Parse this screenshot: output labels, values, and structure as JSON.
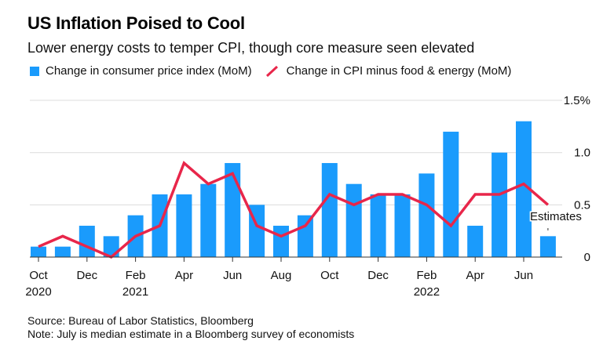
{
  "header": {
    "title": "US Inflation Poised to Cool",
    "subtitle": "Lower energy costs to temper CPI, though core measure seen elevated"
  },
  "legend": [
    {
      "label": "Change in consumer price index (MoM)",
      "color": "#1a9bfc",
      "kind": "bar"
    },
    {
      "label": "Change in CPI minus food & energy (MoM)",
      "color": "#e8264a",
      "kind": "line"
    }
  ],
  "footer": {
    "source": "Source: Bureau of Labor Statistics, Bloomberg",
    "note": "Note: July is median estimate in a Bloomberg survey of economists"
  },
  "chart_data": {
    "type": "bar",
    "title": "US Inflation Poised to Cool",
    "subtitle": "Lower energy costs to temper CPI, though core measure seen elevated",
    "xlabel": "",
    "ylabel": "",
    "ylim": [
      0,
      1.5
    ],
    "y_ticks": [
      "0",
      "0.5",
      "1.0",
      "1.5%"
    ],
    "y_tick_values": [
      0,
      0.5,
      1.0,
      1.5
    ],
    "y_axis_position": "right",
    "grid": true,
    "legend_position": "top-left",
    "categories": [
      "Oct 2020",
      "Nov 2020",
      "Dec 2020",
      "Jan 2021",
      "Feb 2021",
      "Mar 2021",
      "Apr 2021",
      "May 2021",
      "Jun 2021",
      "Jul 2021",
      "Aug 2021",
      "Sep 2021",
      "Oct 2021",
      "Nov 2021",
      "Dec 2021",
      "Jan 2022",
      "Feb 2022",
      "Mar 2022",
      "Apr 2022",
      "May 2022",
      "Jun 2022",
      "Jul 2022"
    ],
    "x_tick_labels": [
      {
        "index": 0,
        "month": "Oct",
        "year": "2020"
      },
      {
        "index": 2,
        "month": "Dec",
        "year": ""
      },
      {
        "index": 4,
        "month": "Feb",
        "year": "2021"
      },
      {
        "index": 6,
        "month": "Apr",
        "year": ""
      },
      {
        "index": 8,
        "month": "Jun",
        "year": ""
      },
      {
        "index": 10,
        "month": "Aug",
        "year": ""
      },
      {
        "index": 12,
        "month": "Oct",
        "year": ""
      },
      {
        "index": 14,
        "month": "Dec",
        "year": ""
      },
      {
        "index": 16,
        "month": "Feb",
        "year": "2022"
      },
      {
        "index": 18,
        "month": "Apr",
        "year": ""
      },
      {
        "index": 20,
        "month": "Jun",
        "year": ""
      }
    ],
    "series": [
      {
        "name": "Change in consumer price index (MoM)",
        "type": "bar",
        "color": "#1a9bfc",
        "values": [
          0.1,
          0.1,
          0.3,
          0.2,
          0.4,
          0.6,
          0.6,
          0.7,
          0.9,
          0.5,
          0.3,
          0.4,
          0.9,
          0.7,
          0.6,
          0.6,
          0.8,
          1.2,
          0.3,
          1.0,
          1.3,
          0.2
        ]
      },
      {
        "name": "Change in CPI minus food & energy (MoM)",
        "type": "line",
        "color": "#e8264a",
        "values": [
          0.1,
          0.2,
          0.1,
          0.0,
          0.2,
          0.3,
          0.9,
          0.7,
          0.8,
          0.3,
          0.2,
          0.3,
          0.6,
          0.5,
          0.6,
          0.6,
          0.5,
          0.3,
          0.6,
          0.6,
          0.7,
          0.5
        ]
      }
    ],
    "annotations": [
      {
        "text": "Estimates",
        "index": 21
      }
    ]
  }
}
